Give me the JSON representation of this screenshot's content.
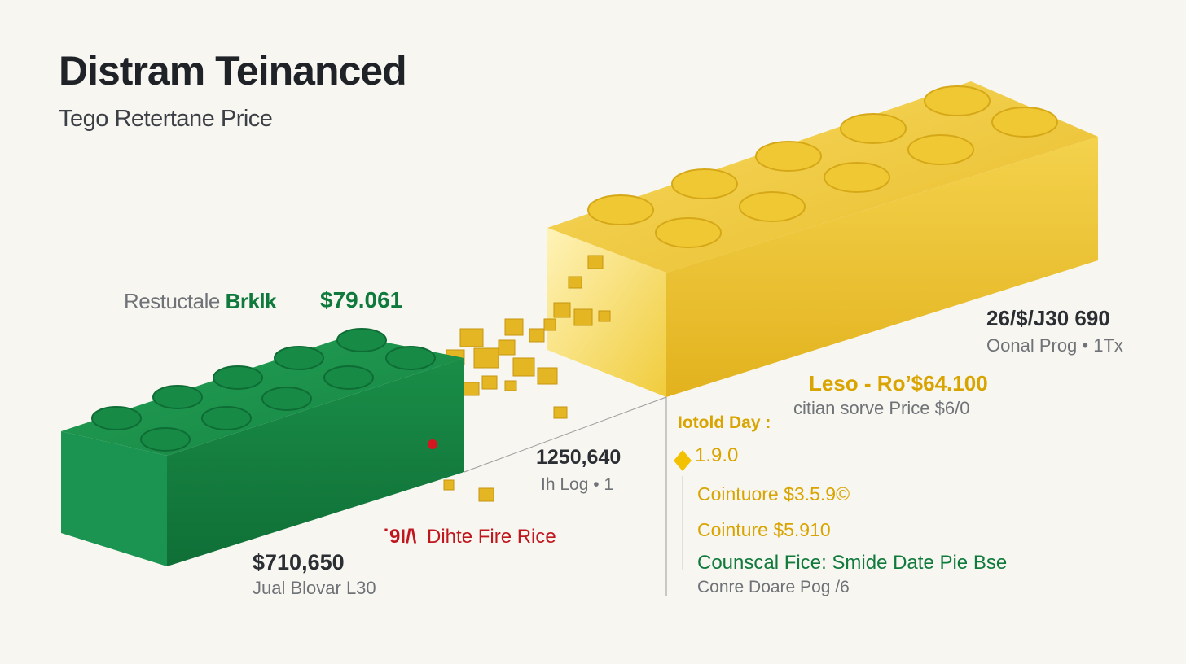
{
  "header": {
    "title": "Distram Teinanced",
    "subtitle": "Tego Retertane Price"
  },
  "colors": {
    "green_brick": "#178a46",
    "gold_brick": "#f1c93a",
    "accent_green": "#0f7a3c",
    "accent_gold": "#d9a400",
    "accent_red": "#c0161e",
    "background": "#f8f6f1"
  },
  "green_brick": {
    "label_prefix": "Restuctale",
    "label_name": "Brklk",
    "price": "$79.061",
    "value": "$710,650",
    "caption": "Jual Blovar L30"
  },
  "center": {
    "value": "1250,640",
    "caption": "Ih Log • 1",
    "marker_value": "˙9I/\\",
    "marker_label": "Dihte Fire Rice"
  },
  "gold_brick": {
    "value": "26/$/J30 690",
    "caption": "Oonal Prog • 1Tx",
    "price_line_prefix": "Leso - Ro’",
    "price_line_value": "$64.100",
    "price_caption": "citian sorve Price $6/0"
  },
  "timeline": {
    "heading": "Iotold Day :",
    "marker_value": "1.9.0",
    "items": [
      {
        "text": "Cointuore $3.5.9©"
      },
      {
        "text": "Cointure $5.910"
      }
    ],
    "footer_line": "Counscal Fice: Smide Date Pie Bse",
    "footer_caption": "Conre Doare Pog /6"
  }
}
